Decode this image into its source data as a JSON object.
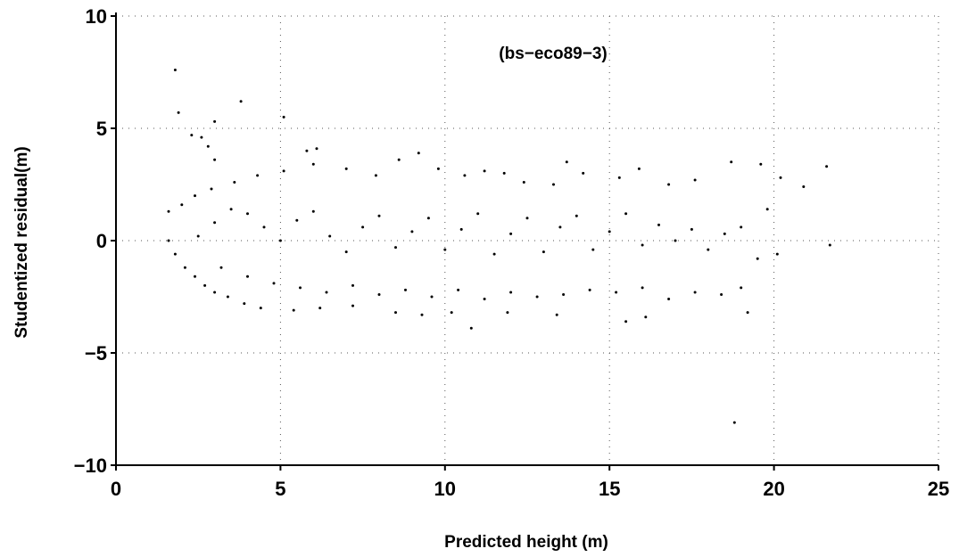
{
  "chart_data": {
    "type": "scatter",
    "title": "",
    "annotation": "(bs−eco89−3)",
    "xlabel": "Predicted height (m)",
    "ylabel": "Studentized residual(m)",
    "xlim": [
      0,
      25
    ],
    "ylim": [
      -10,
      10
    ],
    "xticks": [
      0,
      5,
      10,
      15,
      20,
      25
    ],
    "yticks": [
      -10,
      -5,
      0,
      5,
      10
    ],
    "xtick_labels": [
      "0",
      "5",
      "10",
      "15",
      "20",
      "25"
    ],
    "ytick_labels": [
      "−10",
      "−5",
      "0",
      "5",
      "10"
    ],
    "grid": true,
    "grid_style": "dotted",
    "marker_color": "#000000",
    "point_count_note": "Dense banded cloud of residuals; points listed below are representative samples read from the plot.",
    "points": [
      [
        1.8,
        7.6
      ],
      [
        1.9,
        5.7
      ],
      [
        2.3,
        4.7
      ],
      [
        2.6,
        4.6
      ],
      [
        2.8,
        4.2
      ],
      [
        3.0,
        5.3
      ],
      [
        3.8,
        6.2
      ],
      [
        5.1,
        5.5
      ],
      [
        3.0,
        3.6
      ],
      [
        5.8,
        4.0
      ],
      [
        6.1,
        4.1
      ],
      [
        9.2,
        3.9
      ],
      [
        1.6,
        0.0
      ],
      [
        1.6,
        1.3
      ],
      [
        1.8,
        -0.6
      ],
      [
        2.1,
        -1.2
      ],
      [
        2.4,
        -1.6
      ],
      [
        2.7,
        -2.0
      ],
      [
        3.0,
        -2.3
      ],
      [
        3.4,
        -2.5
      ],
      [
        3.9,
        -2.8
      ],
      [
        4.4,
        -3.0
      ],
      [
        5.4,
        -3.1
      ],
      [
        6.2,
        -3.0
      ],
      [
        7.2,
        -2.9
      ],
      [
        8.5,
        -3.2
      ],
      [
        9.3,
        -3.3
      ],
      [
        10.2,
        -3.2
      ],
      [
        10.8,
        -3.9
      ],
      [
        11.9,
        -3.2
      ],
      [
        13.4,
        -3.3
      ],
      [
        15.5,
        -3.6
      ],
      [
        16.1,
        -3.4
      ],
      [
        19.2,
        -3.2
      ],
      [
        18.8,
        -8.1
      ],
      [
        2.0,
        1.6
      ],
      [
        2.4,
        2.0
      ],
      [
        2.9,
        2.3
      ],
      [
        3.6,
        2.6
      ],
      [
        4.3,
        2.9
      ],
      [
        5.1,
        3.1
      ],
      [
        6.0,
        3.4
      ],
      [
        7.0,
        3.2
      ],
      [
        7.9,
        2.9
      ],
      [
        8.6,
        3.6
      ],
      [
        9.8,
        3.2
      ],
      [
        10.6,
        2.9
      ],
      [
        11.2,
        3.1
      ],
      [
        11.8,
        3.0
      ],
      [
        12.4,
        2.6
      ],
      [
        13.3,
        2.5
      ],
      [
        13.7,
        3.5
      ],
      [
        14.2,
        3.0
      ],
      [
        15.3,
        2.8
      ],
      [
        15.9,
        3.2
      ],
      [
        16.8,
        2.5
      ],
      [
        17.6,
        2.7
      ],
      [
        18.7,
        3.5
      ],
      [
        19.6,
        3.4
      ],
      [
        20.2,
        2.8
      ],
      [
        20.9,
        2.4
      ],
      [
        21.6,
        3.3
      ],
      [
        21.7,
        -0.2
      ],
      [
        2.5,
        0.2
      ],
      [
        3.0,
        0.8
      ],
      [
        3.5,
        1.4
      ],
      [
        4.0,
        1.2
      ],
      [
        4.5,
        0.6
      ],
      [
        5.0,
        0.0
      ],
      [
        5.5,
        0.9
      ],
      [
        6.0,
        1.3
      ],
      [
        6.5,
        0.2
      ],
      [
        7.0,
        -0.5
      ],
      [
        7.5,
        0.6
      ],
      [
        8.0,
        1.1
      ],
      [
        8.5,
        -0.3
      ],
      [
        9.0,
        0.4
      ],
      [
        9.5,
        1.0
      ],
      [
        10.0,
        -0.4
      ],
      [
        10.5,
        0.5
      ],
      [
        11.0,
        1.2
      ],
      [
        11.5,
        -0.6
      ],
      [
        12.0,
        0.3
      ],
      [
        12.5,
        1.0
      ],
      [
        13.0,
        -0.5
      ],
      [
        13.5,
        0.6
      ],
      [
        14.0,
        1.1
      ],
      [
        14.5,
        -0.4
      ],
      [
        15.0,
        0.4
      ],
      [
        15.5,
        1.2
      ],
      [
        16.0,
        -0.2
      ],
      [
        16.5,
        0.7
      ],
      [
        17.0,
        0.0
      ],
      [
        17.5,
        0.5
      ],
      [
        18.0,
        -0.4
      ],
      [
        18.5,
        0.3
      ],
      [
        19.0,
        0.6
      ],
      [
        19.5,
        -0.8
      ],
      [
        20.1,
        -0.6
      ],
      [
        19.8,
        1.4
      ],
      [
        3.2,
        -1.2
      ],
      [
        4.0,
        -1.6
      ],
      [
        4.8,
        -1.9
      ],
      [
        5.6,
        -2.1
      ],
      [
        6.4,
        -2.3
      ],
      [
        7.2,
        -2.0
      ],
      [
        8.0,
        -2.4
      ],
      [
        8.8,
        -2.2
      ],
      [
        9.6,
        -2.5
      ],
      [
        10.4,
        -2.2
      ],
      [
        11.2,
        -2.6
      ],
      [
        12.0,
        -2.3
      ],
      [
        12.8,
        -2.5
      ],
      [
        13.6,
        -2.4
      ],
      [
        14.4,
        -2.2
      ],
      [
        15.2,
        -2.3
      ],
      [
        16.0,
        -2.1
      ],
      [
        16.8,
        -2.6
      ],
      [
        17.6,
        -2.3
      ],
      [
        18.4,
        -2.4
      ],
      [
        19.0,
        -2.1
      ]
    ]
  }
}
